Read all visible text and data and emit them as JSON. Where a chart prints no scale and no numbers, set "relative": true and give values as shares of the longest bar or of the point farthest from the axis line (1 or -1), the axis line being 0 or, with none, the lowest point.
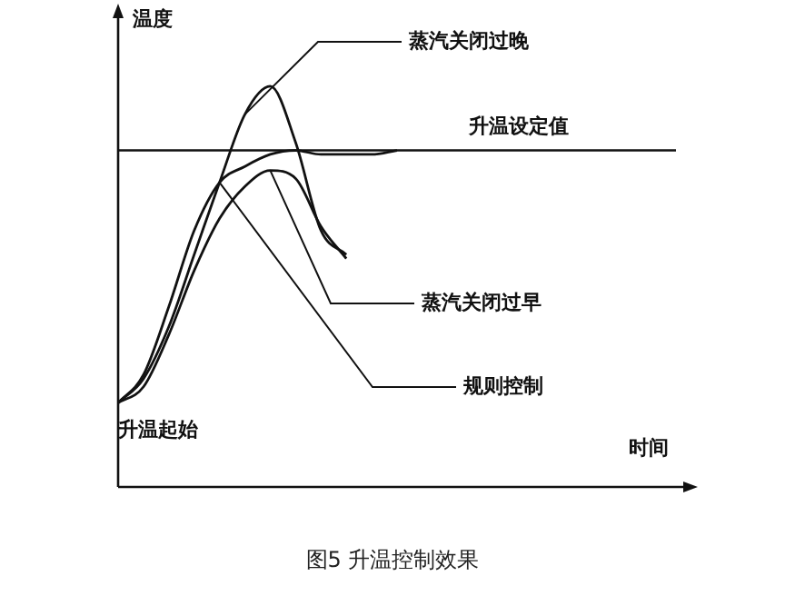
{
  "chart_data": {
    "type": "line",
    "relative": true,
    "title": "图5 升温控制效果",
    "xlabel": "时间",
    "ylabel": "温度",
    "categories": [
      null,
      null,
      null,
      null,
      null,
      null,
      null,
      null,
      null,
      null,
      null,
      null,
      null,
      null,
      null,
      null,
      null,
      null,
      null,
      null,
      null,
      null,
      null
    ],
    "series": [
      {
        "name": "蒸汽关闭过晚",
        "color": "#111111",
        "values": [
          0.21,
          0.27,
          0.4,
          0.58,
          0.76,
          0.93,
          1,
          0.86,
          0.64,
          0.58,
          null,
          null,
          null,
          null,
          null,
          null,
          null,
          null,
          null,
          null,
          null,
          null,
          null
        ]
      },
      {
        "name": "蒸汽关闭过早",
        "color": "#111111",
        "values": [
          0.21,
          0.25,
          0.38,
          0.54,
          0.67,
          0.75,
          0.79,
          0.77,
          0.65,
          0.57,
          null,
          null,
          null,
          null,
          null,
          null,
          null,
          null,
          null,
          null,
          null,
          null,
          null
        ]
      },
      {
        "name": "规则控制",
        "color": "#111111",
        "values": [
          0.21,
          0.28,
          0.45,
          0.64,
          0.76,
          0.8,
          0.83,
          0.84,
          0.83,
          0.83,
          0.83,
          0.84,
          null,
          null,
          null,
          null,
          null,
          null,
          null,
          null,
          null,
          null,
          null
        ]
      }
    ],
    "ref_lines": [
      {
        "axis": "y",
        "value": 0.84,
        "label": "升温设定值"
      }
    ],
    "annotations": [
      "升温起始"
    ],
    "grid": false,
    "legend": false,
    "marker": "none",
    "line_style": "solid"
  }
}
